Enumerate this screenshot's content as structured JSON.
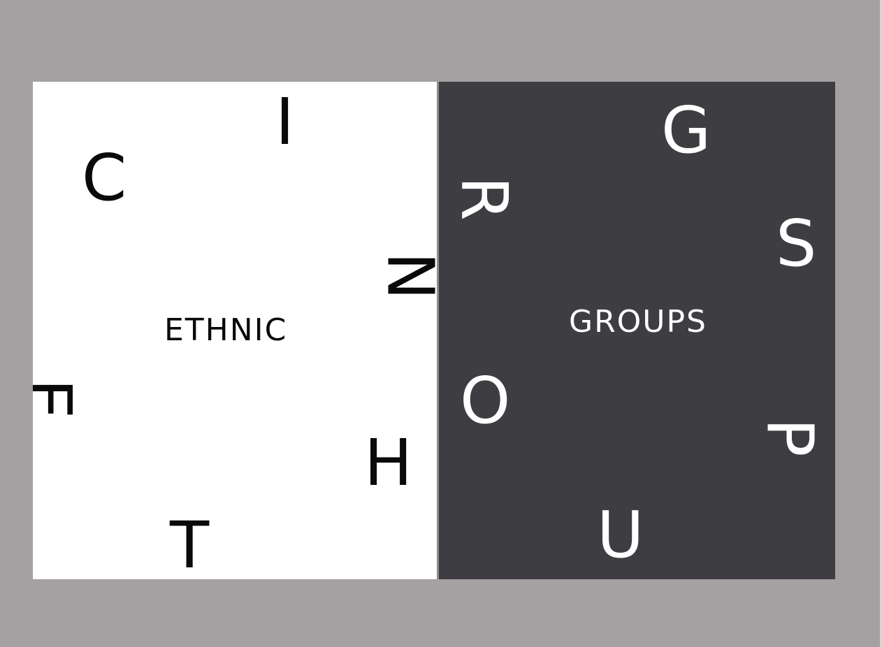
{
  "left_panel": {
    "word": "ETHNIC",
    "letters": {
      "i": "I",
      "c": "C",
      "n": "N",
      "e": "E",
      "h": "H",
      "t": "T"
    }
  },
  "right_panel": {
    "word": "GROUPS",
    "letters": {
      "g": "G",
      "r": "R",
      "s": "S",
      "o": "O",
      "p": "P",
      "u": "U"
    }
  },
  "colors": {
    "background": "#a5a0a1",
    "left_panel": "#ffffff",
    "right_panel": "#3d3d42",
    "dark_text": "#0a0a0a",
    "light_text": "#ffffff"
  }
}
